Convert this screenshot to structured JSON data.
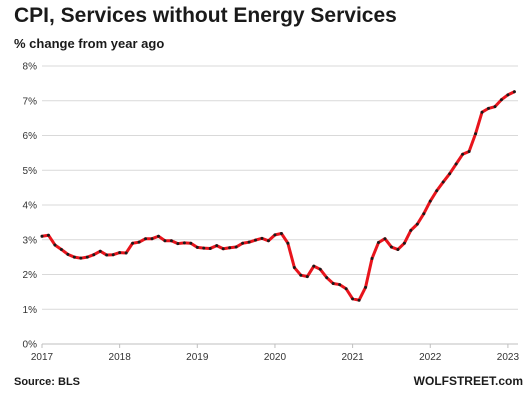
{
  "chart_data": {
    "type": "line",
    "title": "CPI, Services without Energy Services",
    "subtitle": "% change from year ago",
    "source": "Source: BLS",
    "brand": "WOLFSTREET.com",
    "xlabel": "",
    "ylabel": "",
    "x_range": [
      2017.0,
      2023.13
    ],
    "ylim": [
      0,
      8
    ],
    "y_ticks": [
      {
        "value": 0,
        "label": "0%"
      },
      {
        "value": 1,
        "label": "1%"
      },
      {
        "value": 2,
        "label": "2%"
      },
      {
        "value": 3,
        "label": "3%"
      },
      {
        "value": 4,
        "label": "4%"
      },
      {
        "value": 5,
        "label": "5%"
      },
      {
        "value": 6,
        "label": "6%"
      },
      {
        "value": 7,
        "label": "7%"
      },
      {
        "value": 8,
        "label": "8%"
      }
    ],
    "x_ticks": [
      {
        "value": 2017,
        "label": "2017"
      },
      {
        "value": 2018,
        "label": "2018"
      },
      {
        "value": 2019,
        "label": "2019"
      },
      {
        "value": 2020,
        "label": "2020"
      },
      {
        "value": 2021,
        "label": "2021"
      },
      {
        "value": 2022,
        "label": "2022"
      },
      {
        "value": 2023,
        "label": "2023"
      }
    ],
    "grid": true,
    "colors": {
      "line": "#e8141c",
      "marker": "#1a1a1a",
      "grid": "#d9d9d9"
    },
    "series": [
      {
        "x_start": "2017-01",
        "x": [
          "2017-01",
          "2017-02",
          "2017-03",
          "2017-04",
          "2017-05",
          "2017-06",
          "2017-07",
          "2017-08",
          "2017-09",
          "2017-10",
          "2017-11",
          "2017-12",
          "2018-01",
          "2018-02",
          "2018-03",
          "2018-04",
          "2018-05",
          "2018-06",
          "2018-07",
          "2018-08",
          "2018-09",
          "2018-10",
          "2018-11",
          "2018-12",
          "2019-01",
          "2019-02",
          "2019-03",
          "2019-04",
          "2019-05",
          "2019-06",
          "2019-07",
          "2019-08",
          "2019-09",
          "2019-10",
          "2019-11",
          "2019-12",
          "2020-01",
          "2020-02",
          "2020-03",
          "2020-04",
          "2020-05",
          "2020-06",
          "2020-07",
          "2020-08",
          "2020-09",
          "2020-10",
          "2020-11",
          "2020-12",
          "2021-01",
          "2021-02",
          "2021-03",
          "2021-04",
          "2021-05",
          "2021-06",
          "2021-07",
          "2021-08",
          "2021-09",
          "2021-10",
          "2021-11",
          "2021-12",
          "2022-01",
          "2022-02",
          "2022-03",
          "2022-04",
          "2022-05",
          "2022-06",
          "2022-07",
          "2022-08",
          "2022-09",
          "2022-10",
          "2022-11",
          "2022-12",
          "2023-01",
          "2023-02"
        ],
        "values": [
          3.1,
          3.13,
          2.85,
          2.72,
          2.58,
          2.5,
          2.47,
          2.5,
          2.57,
          2.67,
          2.56,
          2.57,
          2.63,
          2.62,
          2.9,
          2.93,
          3.03,
          3.03,
          3.1,
          2.97,
          2.97,
          2.89,
          2.91,
          2.9,
          2.78,
          2.76,
          2.75,
          2.83,
          2.74,
          2.77,
          2.79,
          2.9,
          2.93,
          2.99,
          3.04,
          2.97,
          3.14,
          3.18,
          2.9,
          2.2,
          1.98,
          1.94,
          2.24,
          2.15,
          1.91,
          1.74,
          1.71,
          1.59,
          1.3,
          1.26,
          1.63,
          2.46,
          2.92,
          3.03,
          2.79,
          2.72,
          2.9,
          3.27,
          3.45,
          3.75,
          4.11,
          4.41,
          4.66,
          4.9,
          5.18,
          5.46,
          5.54,
          6.05,
          6.67,
          6.78,
          6.83,
          7.03,
          7.17,
          7.26
        ]
      }
    ]
  }
}
